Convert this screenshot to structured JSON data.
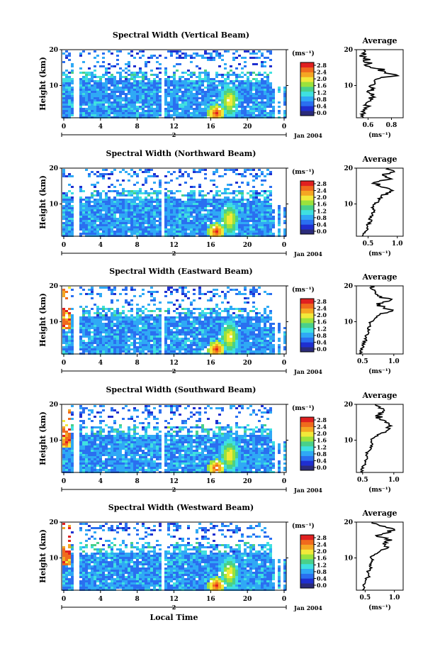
{
  "chart_data": [
    {
      "type": "heatmap",
      "title": "Spectral Width (Vertical Beam)",
      "ylabel": "Height (km)",
      "ylim": [
        1,
        20
      ],
      "y_ticks": [
        "10",
        "20"
      ],
      "x_ticks": [
        "0",
        "4",
        "8",
        "12",
        "16",
        "20",
        "0"
      ],
      "xlim": [
        0,
        24
      ],
      "date_marker": "2",
      "date_label": "Jan 2004",
      "colorbar": {
        "unit_label": "(ms⁻¹)",
        "ticks": [
          "0.0",
          "0.4",
          "0.8",
          "1.2",
          "1.6",
          "2.0",
          "2.4",
          "2.8"
        ],
        "colors": [
          "#2b2b7a",
          "#1f2fd0",
          "#2a6ff0",
          "#2fa9f5",
          "#3fe0e0",
          "#49d08a",
          "#9be23c",
          "#f2e93a",
          "#f5a623",
          "#f06a1d",
          "#e02020"
        ]
      },
      "average": {
        "title": "Average",
        "xlabel": "(ms⁻¹)",
        "x_ticks": [
          "0.6",
          "0.8"
        ],
        "y_ticks": [
          "10",
          "20"
        ],
        "xlim": [
          0.5,
          0.9
        ],
        "height_km": [
          1,
          2,
          3,
          4,
          5,
          6,
          7,
          8,
          9,
          10,
          11,
          12,
          13,
          14,
          15,
          16,
          17,
          18,
          19,
          20
        ],
        "width_ms": [
          0.56,
          0.54,
          0.57,
          0.6,
          0.58,
          0.62,
          0.64,
          0.61,
          0.63,
          0.62,
          0.66,
          0.7,
          0.84,
          0.74,
          0.62,
          0.6,
          0.56,
          0.58,
          0.55,
          0.56
        ]
      }
    },
    {
      "type": "heatmap",
      "title": "Spectral Width (Northward Beam)",
      "ylabel": "Height (km)",
      "ylim": [
        1,
        20
      ],
      "y_ticks": [
        "10",
        "20"
      ],
      "x_ticks": [
        "0",
        "4",
        "8",
        "12",
        "16",
        "20",
        "0"
      ],
      "xlim": [
        0,
        24
      ],
      "date_marker": "2",
      "date_label": "Jan 2004",
      "colorbar": {
        "unit_label": "(ms⁻¹)",
        "ticks": [
          "0.0",
          "0.4",
          "0.8",
          "1.2",
          "1.6",
          "2.0",
          "2.4",
          "2.8"
        ],
        "colors": [
          "#2b2b7a",
          "#1f2fd0",
          "#2a6ff0",
          "#2fa9f5",
          "#3fe0e0",
          "#49d08a",
          "#9be23c",
          "#f2e93a",
          "#f5a623",
          "#f06a1d",
          "#e02020"
        ]
      },
      "average": {
        "title": "Average",
        "xlabel": "(ms⁻¹)",
        "x_ticks": [
          "0.5",
          "1.0"
        ],
        "y_ticks": [
          "10",
          "20"
        ],
        "xlim": [
          0.3,
          1.1
        ],
        "height_km": [
          1,
          2,
          3,
          4,
          5,
          6,
          7,
          8,
          9,
          10,
          11,
          12,
          13,
          14,
          15,
          16,
          17,
          18,
          19,
          20
        ],
        "width_ms": [
          0.4,
          0.45,
          0.5,
          0.48,
          0.55,
          0.52,
          0.58,
          0.6,
          0.56,
          0.62,
          0.68,
          0.72,
          0.8,
          0.88,
          0.7,
          0.6,
          0.9,
          0.75,
          0.95,
          0.85
        ]
      }
    },
    {
      "type": "heatmap",
      "title": "Spectral Width (Eastward Beam)",
      "ylabel": "Height (km)",
      "ylim": [
        1,
        20
      ],
      "y_ticks": [
        "10",
        "20"
      ],
      "x_ticks": [
        "0",
        "4",
        "8",
        "12",
        "16",
        "20",
        "0"
      ],
      "xlim": [
        0,
        24
      ],
      "date_marker": "2",
      "date_label": "Jan 2004",
      "colorbar": {
        "unit_label": "(ms⁻¹)",
        "ticks": [
          "0.0",
          "0.4",
          "0.8",
          "1.2",
          "1.6",
          "2.0",
          "2.4",
          "2.8"
        ],
        "colors": [
          "#2b2b7a",
          "#1f2fd0",
          "#2a6ff0",
          "#2fa9f5",
          "#3fe0e0",
          "#49d08a",
          "#9be23c",
          "#f2e93a",
          "#f5a623",
          "#f06a1d",
          "#e02020"
        ]
      },
      "average": {
        "title": "Average",
        "xlabel": "(ms⁻¹)",
        "x_ticks": [
          "0.5",
          "1.0"
        ],
        "y_ticks": [
          "10",
          "20"
        ],
        "xlim": [
          0.4,
          1.15
        ],
        "height_km": [
          1,
          2,
          3,
          4,
          5,
          6,
          7,
          8,
          9,
          10,
          11,
          12,
          13,
          14,
          15,
          16,
          17,
          18,
          19,
          20
        ],
        "width_ms": [
          0.48,
          0.46,
          0.52,
          0.5,
          0.56,
          0.54,
          0.6,
          0.58,
          0.62,
          0.64,
          0.7,
          0.78,
          0.98,
          0.85,
          0.72,
          0.95,
          0.8,
          0.7,
          0.66,
          0.62
        ]
      }
    },
    {
      "type": "heatmap",
      "title": "Spectral Width (Southward Beam)",
      "ylabel": "Height (km)",
      "ylim": [
        1,
        20
      ],
      "y_ticks": [
        "10",
        "20"
      ],
      "x_ticks": [
        "0",
        "4",
        "8",
        "12",
        "16",
        "20",
        "0"
      ],
      "xlim": [
        0,
        24
      ],
      "date_marker": "2",
      "date_label": "Jan 2004",
      "colorbar": {
        "unit_label": "(ms⁻¹)",
        "ticks": [
          "0.0",
          "0.4",
          "0.8",
          "1.2",
          "1.6",
          "2.0",
          "2.4",
          "2.8"
        ],
        "colors": [
          "#2b2b7a",
          "#1f2fd0",
          "#2a6ff0",
          "#2fa9f5",
          "#3fe0e0",
          "#49d08a",
          "#9be23c",
          "#f2e93a",
          "#f5a623",
          "#f06a1d",
          "#e02020"
        ]
      },
      "average": {
        "title": "Average",
        "xlabel": "(ms⁻¹)",
        "x_ticks": [
          "0.5",
          "1.0"
        ],
        "y_ticks": [
          "10",
          "20"
        ],
        "xlim": [
          0.4,
          1.15
        ],
        "height_km": [
          1,
          2,
          3,
          4,
          5,
          6,
          7,
          8,
          9,
          10,
          11,
          12,
          13,
          14,
          15,
          16,
          17,
          18,
          19,
          20
        ],
        "width_ms": [
          0.5,
          0.48,
          0.52,
          0.55,
          0.58,
          0.56,
          0.6,
          0.62,
          0.66,
          0.64,
          0.7,
          0.8,
          0.92,
          0.96,
          0.86,
          0.78,
          0.74,
          0.82,
          0.76,
          0.7
        ]
      }
    },
    {
      "type": "heatmap",
      "title": "Spectral Width (Westward Beam)",
      "ylabel": "Height (km)",
      "ylim": [
        1,
        20
      ],
      "y_ticks": [
        "10",
        "20"
      ],
      "x_ticks": [
        "0",
        "4",
        "8",
        "12",
        "16",
        "20",
        "0"
      ],
      "xlim": [
        0,
        24
      ],
      "date_marker": "2",
      "date_label": "Jan 2004",
      "xlabel": "Local Time",
      "colorbar": {
        "unit_label": "(ms⁻¹)",
        "ticks": [
          "0.0",
          "0.4",
          "0.8",
          "1.2",
          "1.6",
          "2.0",
          "2.4",
          "2.8"
        ],
        "colors": [
          "#2b2b7a",
          "#1f2fd0",
          "#2a6ff0",
          "#2fa9f5",
          "#3fe0e0",
          "#49d08a",
          "#9be23c",
          "#f2e93a",
          "#f5a623",
          "#f06a1d",
          "#e02020"
        ]
      },
      "average": {
        "title": "Average",
        "xlabel": "(ms⁻¹)",
        "x_ticks": [
          "0.5",
          "1.0"
        ],
        "y_ticks": [
          "10",
          "20"
        ],
        "xlim": [
          0.35,
          1.15
        ],
        "height_km": [
          1,
          2,
          3,
          4,
          5,
          6,
          7,
          8,
          9,
          10,
          11,
          12,
          13,
          14,
          15,
          16,
          17,
          18,
          19,
          20
        ],
        "width_ms": [
          0.45,
          0.48,
          0.5,
          0.52,
          0.56,
          0.54,
          0.58,
          0.6,
          0.62,
          0.6,
          0.66,
          0.76,
          0.9,
          0.8,
          0.96,
          0.7,
          0.88,
          1.0,
          0.75,
          0.62
        ]
      }
    }
  ]
}
